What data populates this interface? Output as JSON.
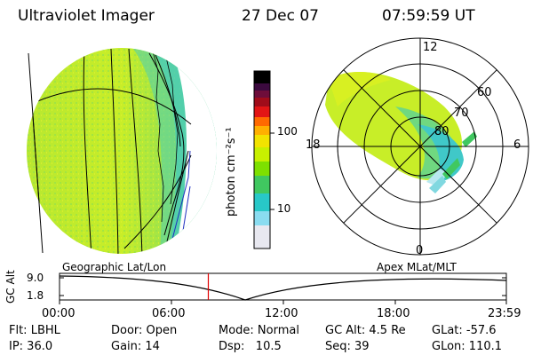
{
  "header": {
    "instrument": "Ultraviolet Imager",
    "date": "27 Dec 07",
    "time": "07:59:59 UT"
  },
  "colorbar": {
    "label": "photon cm⁻²s⁻¹",
    "ticks": [
      "100",
      "10"
    ],
    "colors": [
      "#000000",
      "#3b0a3e",
      "#6e0d3a",
      "#a00c1a",
      "#e21515",
      "#ff6a00",
      "#ffb000",
      "#f2e300",
      "#c8f000",
      "#7ee000",
      "#40c860",
      "#28c8c8",
      "#8adcf0",
      "#e8e8f0"
    ]
  },
  "polar_plot": {
    "lat_labels": [
      "60",
      "70",
      "80"
    ],
    "mlt_labels": {
      "top": "12",
      "left": "18",
      "right": "6",
      "bottom": "0"
    }
  },
  "lower_panel": {
    "left_title": "Geographic Lat/Lon",
    "right_title": "Apex MLat/MLT",
    "ylabel": "GC Alt",
    "ytick_top": "9.0",
    "ytick_bottom": "1.8",
    "xticks": [
      "00:00",
      "06:00",
      "12:00",
      "18:00",
      "23:59"
    ],
    "current_time_marker_fraction": 0.333
  },
  "info": {
    "row1": {
      "flt": "Flt: LBHL",
      "door": "Door: Open",
      "mode": "Mode: Normal",
      "gcalt": "GC Alt: 4.5 Re",
      "glat": "GLat: -57.6"
    },
    "row2": {
      "ip": "IP: 36.0",
      "gain": "Gain: 14",
      "dsp": "Dsp:   10.5",
      "seq": "Seq: 39",
      "glon": "GLon: 110.1"
    }
  }
}
